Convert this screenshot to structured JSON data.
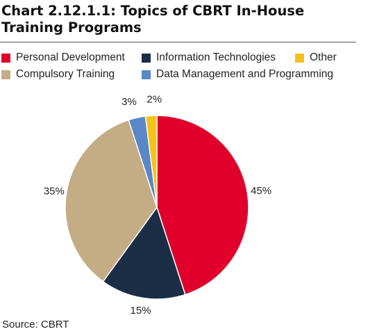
{
  "title": "Chart 2.12.1.1: Topics of CBRT In-House Training Programs",
  "source": "Source: CBRT",
  "chart_data": {
    "type": "pie",
    "title": "Chart 2.12.1.1: Topics of CBRT In-House Training Programs",
    "legend_placement": "top",
    "start": "12 o'clock, clockwise",
    "slices": [
      {
        "name": "Personal Development",
        "value": 45,
        "label": "45%",
        "color": "#e0002b"
      },
      {
        "name": "Information Technologies",
        "value": 15,
        "label": "15%",
        "color": "#1c2e45"
      },
      {
        "name": "Compulsory Training",
        "value": 35,
        "label": "35%",
        "color": "#c4ad85"
      },
      {
        "name": "Data Management and Programming",
        "value": 3,
        "label": "3%",
        "color": "#5a87c6"
      },
      {
        "name": "Other",
        "value": 2,
        "label": "2%",
        "color": "#f5c218"
      }
    ]
  },
  "legend": [
    {
      "label": "Personal Development",
      "color": "#e0002b"
    },
    {
      "label": "Information Technologies",
      "color": "#1c2e45"
    },
    {
      "label": "Other",
      "color": "#f5c218"
    },
    {
      "label": "Compulsory Training",
      "color": "#c4ad85"
    },
    {
      "label": "Data Management and Programming",
      "color": "#5a87c6"
    }
  ]
}
